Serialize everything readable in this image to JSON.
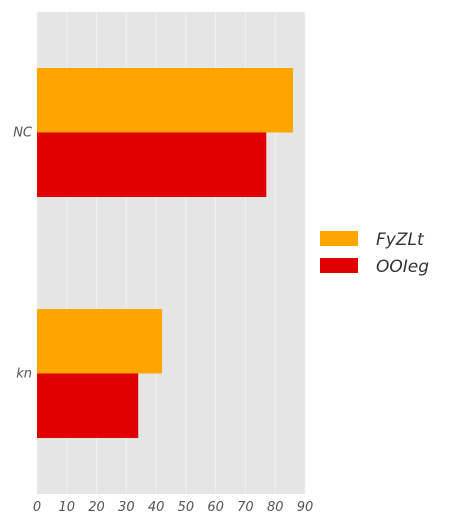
{
  "chart_data": {
    "type": "bar",
    "orientation": "horizontal",
    "categories": [
      "NC",
      "kn"
    ],
    "series": [
      {
        "name": "FyZLt",
        "color": "#FFA500",
        "values": [
          86,
          42
        ]
      },
      {
        "name": "OOIeg",
        "color": "#E00000",
        "values": [
          77,
          34
        ]
      }
    ],
    "xlim": [
      0,
      90
    ],
    "xticks": [
      "0",
      "10",
      "20",
      "30",
      "40",
      "50",
      "60",
      "70",
      "80",
      "90"
    ],
    "grid": true,
    "legend_position": "right",
    "background_color": "#E5E5E5"
  }
}
